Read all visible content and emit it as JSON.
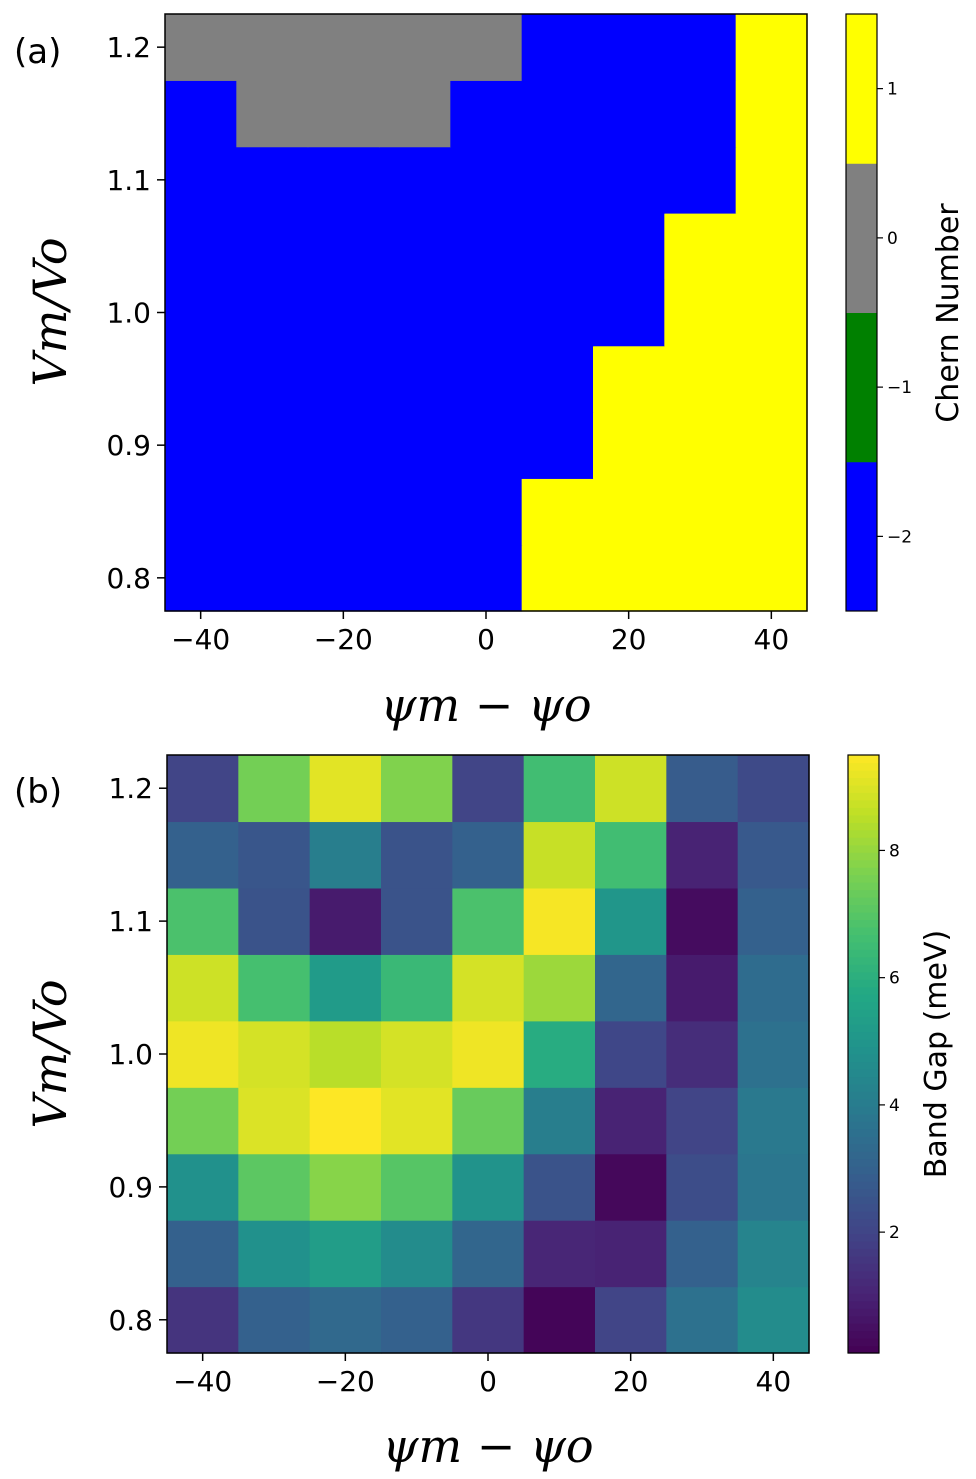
{
  "chart_data": [
    {
      "type": "heatmap",
      "panel_label": "(a)",
      "xlabel": "ψm − ψo",
      "ylabel": "Vm/Vo",
      "x": [
        -40,
        -30,
        -20,
        -10,
        0,
        10,
        20,
        30,
        40
      ],
      "y": [
        0.8,
        0.85,
        0.9,
        0.95,
        1.0,
        1.05,
        1.1,
        1.15,
        1.2
      ],
      "xlim": [
        -45,
        45
      ],
      "ylim": [
        0.775,
        1.225
      ],
      "xticks": [
        "−40",
        "−20",
        "0",
        "20",
        "40"
      ],
      "xtick_values": [
        -40,
        -20,
        0,
        20,
        40
      ],
      "yticks": [
        "0.8",
        "0.9",
        "1.0",
        "1.1",
        "1.2"
      ],
      "ytick_values": [
        0.8,
        0.9,
        1.0,
        1.1,
        1.2
      ],
      "z": [
        [
          -2,
          -2,
          -2,
          -2,
          -2,
          1,
          1,
          1,
          1
        ],
        [
          -2,
          -2,
          -2,
          -2,
          -2,
          1,
          1,
          1,
          1
        ],
        [
          -2,
          -2,
          -2,
          -2,
          -2,
          -2,
          1,
          1,
          1
        ],
        [
          -2,
          -2,
          -2,
          -2,
          -2,
          -2,
          1,
          1,
          1
        ],
        [
          -2,
          -2,
          -2,
          -2,
          -2,
          -2,
          -2,
          1,
          1
        ],
        [
          -2,
          -2,
          -2,
          -2,
          -2,
          -2,
          -2,
          1,
          1
        ],
        [
          -2,
          -2,
          -2,
          -2,
          -2,
          -2,
          -2,
          -2,
          1
        ],
        [
          -2,
          0,
          0,
          0,
          -2,
          -2,
          -2,
          -2,
          1
        ],
        [
          0,
          0,
          0,
          0,
          0,
          -2,
          -2,
          -2,
          1
        ]
      ],
      "colorbar": {
        "label": "Chern Number",
        "type": "discrete",
        "levels": [
          -2,
          -1,
          0,
          1
        ],
        "colors": [
          "#0000ff",
          "#008000",
          "#808080",
          "#ffff00"
        ],
        "ticks": [
          "−2",
          "−1",
          "0",
          "1"
        ]
      }
    },
    {
      "type": "heatmap",
      "panel_label": "(b)",
      "xlabel": "ψm − ψo",
      "ylabel": "Vm/Vo",
      "x": [
        -40,
        -30,
        -20,
        -10,
        0,
        10,
        20,
        30,
        40
      ],
      "y": [
        0.8,
        0.85,
        0.9,
        0.95,
        1.0,
        1.05,
        1.1,
        1.15,
        1.2
      ],
      "xlim": [
        -45,
        45
      ],
      "ylim": [
        0.775,
        1.225
      ],
      "xticks": [
        "−40",
        "−20",
        "0",
        "20",
        "40"
      ],
      "xtick_values": [
        -40,
        -20,
        0,
        20,
        40
      ],
      "yticks": [
        "0.8",
        "0.9",
        "1.0",
        "1.1",
        "1.2"
      ],
      "ytick_values": [
        0.8,
        0.9,
        1.0,
        1.1,
        1.2
      ],
      "z": [
        [
          1.5,
          3.0,
          3.3,
          3.0,
          1.6,
          0.2,
          2.0,
          3.6,
          4.6
        ],
        [
          3.0,
          4.8,
          5.3,
          4.6,
          3.2,
          1.1,
          1.0,
          3.0,
          4.3
        ],
        [
          4.8,
          7.1,
          7.8,
          7.0,
          4.9,
          2.5,
          0.3,
          2.3,
          3.8
        ],
        [
          7.5,
          9.0,
          9.5,
          9.1,
          7.3,
          4.1,
          1.0,
          2.0,
          3.9
        ],
        [
          9.3,
          8.9,
          8.5,
          8.9,
          9.3,
          5.9,
          2.1,
          1.3,
          3.6
        ],
        [
          8.8,
          6.7,
          5.2,
          6.4,
          8.9,
          8.1,
          3.2,
          0.8,
          3.4
        ],
        [
          6.8,
          2.5,
          0.8,
          2.5,
          6.8,
          9.4,
          5.0,
          0.4,
          3.0
        ],
        [
          3.0,
          2.6,
          4.1,
          2.5,
          3.0,
          8.7,
          6.6,
          1.0,
          2.7
        ],
        [
          2.0,
          7.5,
          9.1,
          7.7,
          2.0,
          6.6,
          8.8,
          2.8,
          2.2
        ]
      ],
      "colorbar": {
        "label": "Band Gap (meV)",
        "type": "viridis",
        "vmin": 0.1,
        "vmax": 9.5,
        "ticks": [
          "2",
          "4",
          "6",
          "8"
        ],
        "tick_values": [
          2,
          4,
          6,
          8
        ]
      }
    }
  ]
}
